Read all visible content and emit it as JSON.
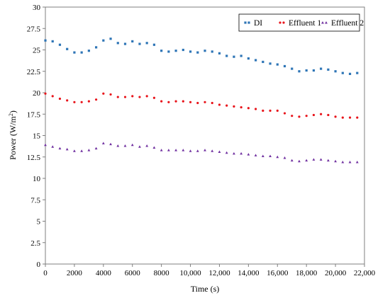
{
  "chart_data": {
    "type": "scatter",
    "xlabel": "Time (s)",
    "ylabel": "Power (W/m",
    "ylabel_sup": "2",
    "ylabel_close": ")",
    "xlim": [
      0,
      22000
    ],
    "ylim": [
      0,
      30
    ],
    "xticks": [
      0,
      2000,
      4000,
      6000,
      8000,
      10000,
      12000,
      14000,
      16000,
      18000,
      20000,
      22000
    ],
    "xtick_labels": [
      "0",
      "2000",
      "4000",
      "6000",
      "8000",
      "10,000",
      "12,000",
      "14,000",
      "16,000",
      "18,000",
      "20,000",
      "22,000"
    ],
    "yticks": [
      0,
      2.5,
      5,
      7.5,
      10,
      12.5,
      15,
      17.5,
      20,
      22.5,
      25,
      27.5,
      30
    ],
    "ytick_labels": [
      "0",
      "2.5",
      "5",
      "7.5",
      "10",
      "12.5",
      "15",
      "17.5",
      "20",
      "22.5",
      "25",
      "27.5",
      "30"
    ],
    "grid": false,
    "legend_position": "top-right",
    "series": [
      {
        "name": "DI",
        "color": "#2e75b6",
        "marker": "square",
        "x": [
          0,
          500,
          1000,
          1500,
          2000,
          2500,
          3000,
          3500,
          4000,
          4500,
          5000,
          5500,
          6000,
          6500,
          7000,
          7500,
          8000,
          8500,
          9000,
          9500,
          10000,
          10500,
          11000,
          11500,
          12000,
          12500,
          13000,
          13500,
          14000,
          14500,
          15000,
          15500,
          16000,
          16500,
          17000,
          17500,
          18000,
          18500,
          19000,
          19500,
          20000,
          20500,
          21000,
          21500
        ],
        "y": [
          26.1,
          26.0,
          25.6,
          25.1,
          24.7,
          24.7,
          24.9,
          25.3,
          26.1,
          26.3,
          25.8,
          25.7,
          26.0,
          25.7,
          25.8,
          25.6,
          24.9,
          24.8,
          24.9,
          25.0,
          24.8,
          24.7,
          24.9,
          24.8,
          24.6,
          24.3,
          24.2,
          24.3,
          24.0,
          23.8,
          23.6,
          23.4,
          23.3,
          23.1,
          22.8,
          22.5,
          22.6,
          22.6,
          22.8,
          22.7,
          22.5,
          22.3,
          22.2,
          22.3
        ]
      },
      {
        "name": "Effluent 1",
        "color": "#e8141b",
        "marker": "circle",
        "x": [
          0,
          500,
          1000,
          1500,
          2000,
          2500,
          3000,
          3500,
          4000,
          4500,
          5000,
          5500,
          6000,
          6500,
          7000,
          7500,
          8000,
          8500,
          9000,
          9500,
          10000,
          10500,
          11000,
          11500,
          12000,
          12500,
          13000,
          13500,
          14000,
          14500,
          15000,
          15500,
          16000,
          16500,
          17000,
          17500,
          18000,
          18500,
          19000,
          19500,
          20000,
          20500,
          21000,
          21500
        ],
        "y": [
          19.9,
          19.6,
          19.3,
          19.1,
          18.9,
          18.9,
          19.0,
          19.2,
          19.9,
          19.8,
          19.5,
          19.5,
          19.6,
          19.5,
          19.6,
          19.4,
          19.0,
          18.9,
          19.0,
          19.0,
          18.9,
          18.8,
          18.9,
          18.8,
          18.6,
          18.5,
          18.4,
          18.3,
          18.2,
          18.1,
          17.9,
          17.9,
          17.9,
          17.6,
          17.3,
          17.2,
          17.3,
          17.4,
          17.5,
          17.4,
          17.2,
          17.1,
          17.1,
          17.1
        ]
      },
      {
        "name": "Effluent 2",
        "color": "#7030a0",
        "marker": "triangle",
        "x": [
          0,
          500,
          1000,
          1500,
          2000,
          2500,
          3000,
          3500,
          4000,
          4500,
          5000,
          5500,
          6000,
          6500,
          7000,
          7500,
          8000,
          8500,
          9000,
          9500,
          10000,
          10500,
          11000,
          11500,
          12000,
          12500,
          13000,
          13500,
          14000,
          14500,
          15000,
          15500,
          16000,
          16500,
          17000,
          17500,
          18000,
          18500,
          19000,
          19500,
          20000,
          20500,
          21000,
          21500
        ],
        "y": [
          13.9,
          13.7,
          13.5,
          13.4,
          13.2,
          13.2,
          13.3,
          13.5,
          14.1,
          14.0,
          13.8,
          13.8,
          13.9,
          13.7,
          13.8,
          13.6,
          13.3,
          13.3,
          13.3,
          13.3,
          13.2,
          13.2,
          13.3,
          13.2,
          13.1,
          13.0,
          12.9,
          12.9,
          12.8,
          12.7,
          12.6,
          12.6,
          12.5,
          12.4,
          12.1,
          12.0,
          12.1,
          12.2,
          12.2,
          12.1,
          12.0,
          11.9,
          11.9,
          11.9
        ]
      }
    ]
  }
}
